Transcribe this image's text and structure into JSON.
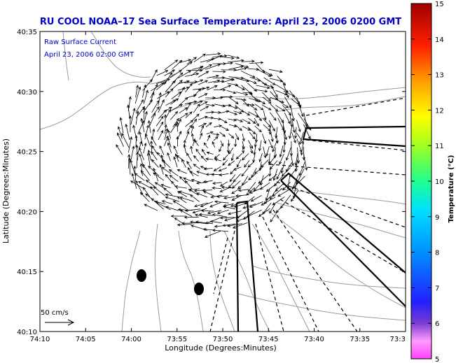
{
  "chart_data": {
    "type": "vector-field",
    "title": "RU COOL  NOAA–17  Sea Surface Temperature:  April 23, 2006 0200 GMT",
    "annotation": [
      "Raw Surface Current",
      "April 23, 2006 02:00 GMT"
    ],
    "xlabel": "Longitude (Degrees:Minutes)",
    "ylabel": "Latitude (Degrees:Minutes)",
    "x_ticks": [
      "74:10",
      "74:05",
      "74:00",
      "73:55",
      "73:50",
      "73:45",
      "73:40",
      "73:35",
      "73:3"
    ],
    "y_ticks": [
      "40:10",
      "40:15",
      "40:20",
      "40:25",
      "40:30",
      "40:35"
    ],
    "xlim_minutes_west": [
      10,
      -20
    ],
    "ylim_minutes_north": [
      10,
      35
    ],
    "scale_label": "50 cm/s",
    "colorbar": {
      "label": "Temperature (°C)",
      "min": 5,
      "max": 15,
      "ticks": [
        "5",
        "6",
        "7",
        "8",
        "9",
        "10",
        "11",
        "12",
        "13",
        "14",
        "15"
      ]
    },
    "colors": {
      "title": "#0000c8",
      "arrows": "#000000",
      "contours": "#9a9a9a"
    }
  }
}
